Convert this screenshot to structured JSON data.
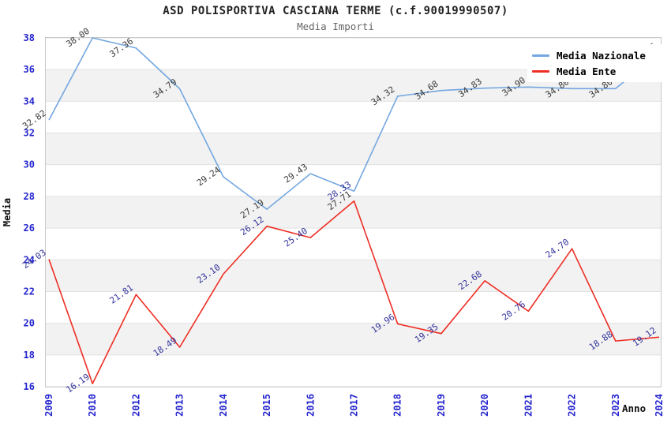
{
  "header": {
    "title": "ASD POLISPORTIVA CASCIANA TERME (c.f.90019990507)",
    "subtitle": "Media Importi"
  },
  "legend": {
    "items": [
      {
        "label": "Media Nazionale",
        "color": "#74a7e0"
      },
      {
        "label": "Media Ente",
        "color": "#ee2e24"
      }
    ]
  },
  "chart_data": {
    "type": "line",
    "title": "ASD POLISPORTIVA CASCIANA TERME (c.f.90019990507)",
    "subtitle": "Media Importi",
    "xlabel": "Anno",
    "ylabel": "Media",
    "categories": [
      "2009",
      "2010",
      "2012",
      "2013",
      "2014",
      "2015",
      "2016",
      "2017",
      "2018",
      "2019",
      "2020",
      "2021",
      "2022",
      "2023",
      "2024"
    ],
    "series": [
      {
        "name": "Media Nazionale",
        "color": "#74a7e0",
        "values": [
          32.82,
          38.0,
          37.36,
          34.79,
          29.24,
          27.19,
          29.43,
          28.33,
          34.32,
          34.68,
          34.83,
          34.9,
          34.8,
          34.8,
          37.05
        ],
        "label_color": "#3a3a3a",
        "label_color_overrides": {
          "7": "#32329b"
        }
      },
      {
        "name": "Media Ente",
        "color": "#ee2e24",
        "values": [
          24.03,
          16.19,
          21.81,
          18.49,
          23.1,
          26.12,
          25.4,
          27.71,
          19.96,
          19.35,
          22.68,
          20.76,
          24.7,
          18.88,
          19.12
        ],
        "label_color": "#32329b",
        "label_color_overrides": {
          "7": "#3a3a3a"
        }
      }
    ],
    "ylim": [
      16,
      38
    ],
    "y_ticks": [
      16,
      18,
      20,
      22,
      24,
      26,
      28,
      30,
      32,
      34,
      36,
      38
    ],
    "grid": true,
    "legend_position": "top-right"
  },
  "colors": {
    "tick_label": "#2424cf",
    "band_gray": "#f2f2f2",
    "gridline": "#e2e2e2",
    "plot_border": "#c9c9c9"
  }
}
